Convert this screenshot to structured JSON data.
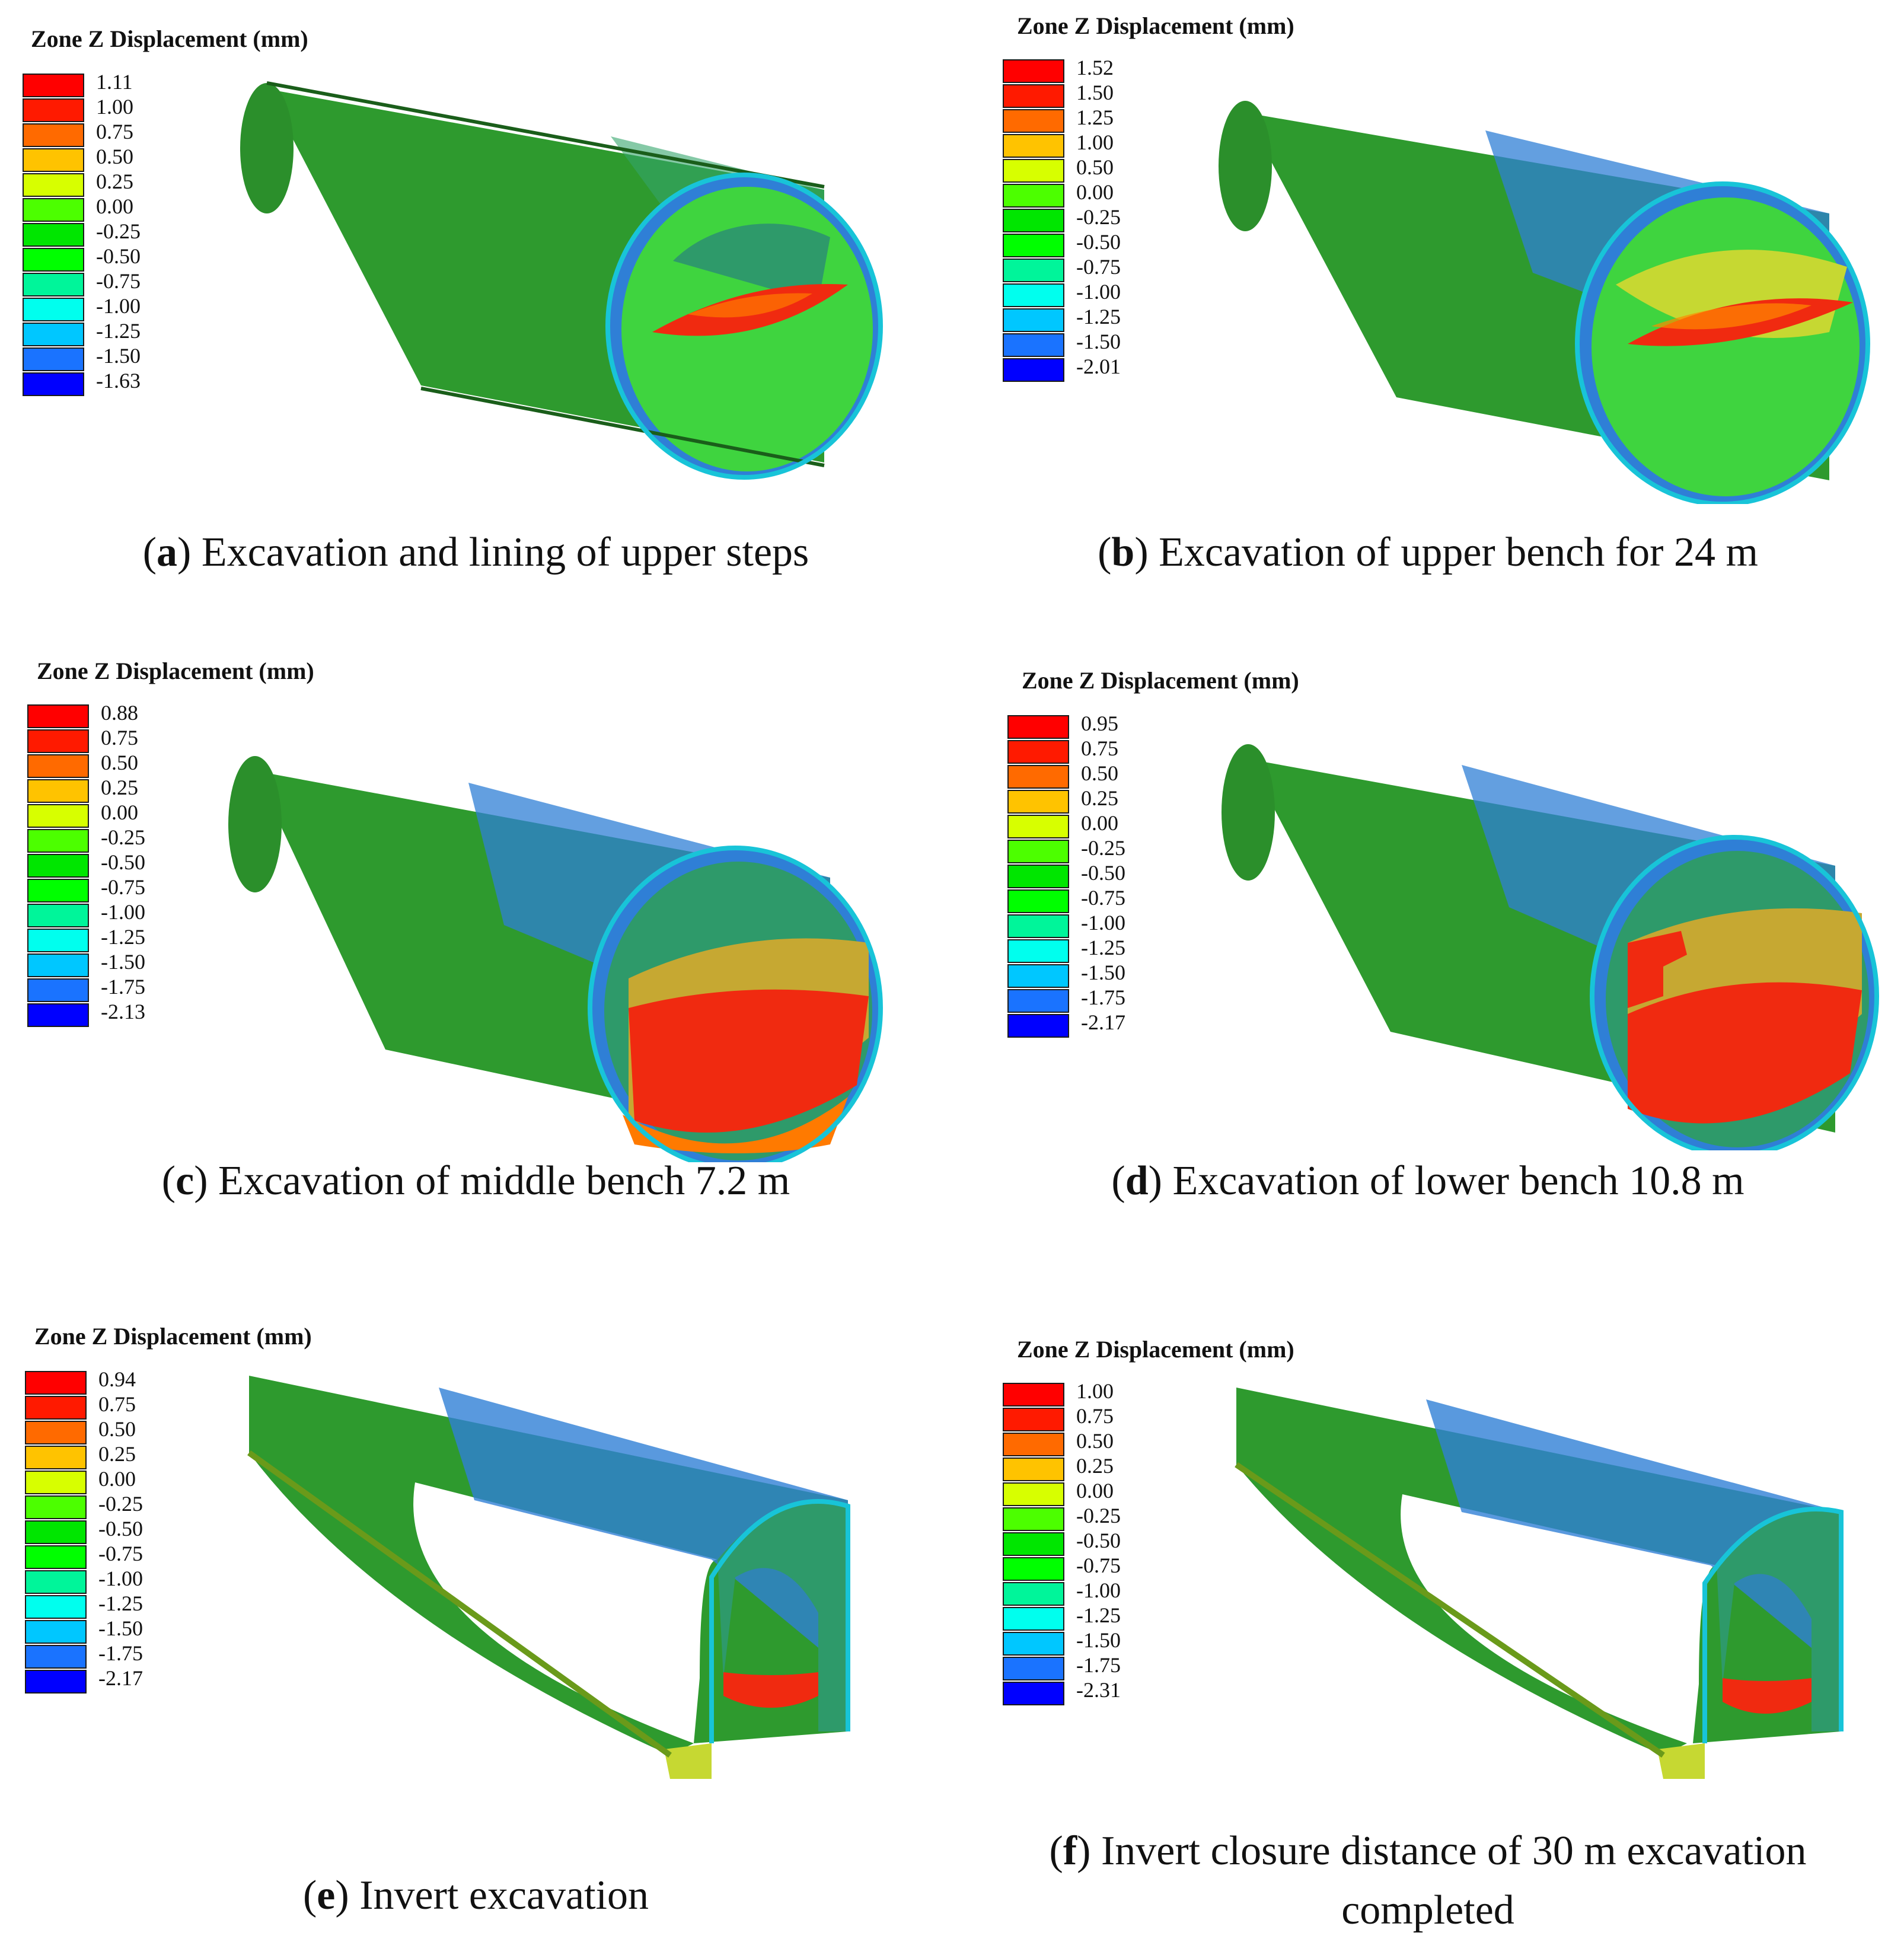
{
  "legend_title": "Zone Z Displacement (mm)",
  "colors": {
    "scale": [
      "#ff0000",
      "#ff1a00",
      "#ff6a00",
      "#ffc300",
      "#d7ff00",
      "#4cff00",
      "#00e600",
      "#00ff00",
      "#00f59a",
      "#00ffee",
      "#00c7ff",
      "#1a73ff",
      "#0000ff"
    ],
    "tunnel_green": "#2e9a2e",
    "tunnel_blue": "#2f7fd6",
    "cyan_rim": "#18c4d8",
    "inner_red": "#f02a10",
    "inner_yellow": "#c6d832",
    "inner_green": "#3fd43f"
  },
  "panels": [
    {
      "id": "a",
      "letter": "a",
      "caption": "Excavation and lining of upper steps",
      "legend": [
        "1.11",
        "1.00",
        "0.75",
        "0.50",
        "0.25",
        "0.00",
        "-0.25",
        "-0.50",
        "-0.75",
        "-1.00",
        "-1.25",
        "-1.50",
        "-1.63"
      ]
    },
    {
      "id": "b",
      "letter": "b",
      "caption": "Excavation of upper bench for 24 m",
      "legend": [
        "1.52",
        "1.50",
        "1.25",
        "1.00",
        "0.50",
        "0.00",
        "-0.25",
        "-0.50",
        "-0.75",
        "-1.00",
        "-1.25",
        "-1.50",
        "-2.01"
      ]
    },
    {
      "id": "c",
      "letter": "c",
      "caption": "Excavation of middle bench 7.2 m",
      "legend": [
        "0.88",
        "0.75",
        "0.50",
        "0.25",
        "0.00",
        "-0.25",
        "-0.50",
        "-0.75",
        "-1.00",
        "-1.25",
        "-1.50",
        "-1.75",
        "-2.13"
      ]
    },
    {
      "id": "d",
      "letter": "d",
      "caption": "Excavation of lower bench 10.8 m",
      "legend": [
        "0.95",
        "0.75",
        "0.50",
        "0.25",
        "0.00",
        "-0.25",
        "-0.50",
        "-0.75",
        "-1.00",
        "-1.25",
        "-1.50",
        "-1.75",
        "-2.17"
      ]
    },
    {
      "id": "e",
      "letter": "e",
      "caption": "Invert excavation",
      "legend": [
        "0.94",
        "0.75",
        "0.50",
        "0.25",
        "0.00",
        "-0.25",
        "-0.50",
        "-0.75",
        "-1.00",
        "-1.25",
        "-1.50",
        "-1.75",
        "-2.17"
      ]
    },
    {
      "id": "f",
      "letter": "f",
      "caption_line1": "Invert closure distance of 30 m excavation",
      "caption_line2": "completed",
      "legend": [
        "1.00",
        "0.75",
        "0.50",
        "0.25",
        "0.00",
        "-0.25",
        "-0.50",
        "-0.75",
        "-1.00",
        "-1.25",
        "-1.50",
        "-1.75",
        "-2.31"
      ]
    }
  ]
}
